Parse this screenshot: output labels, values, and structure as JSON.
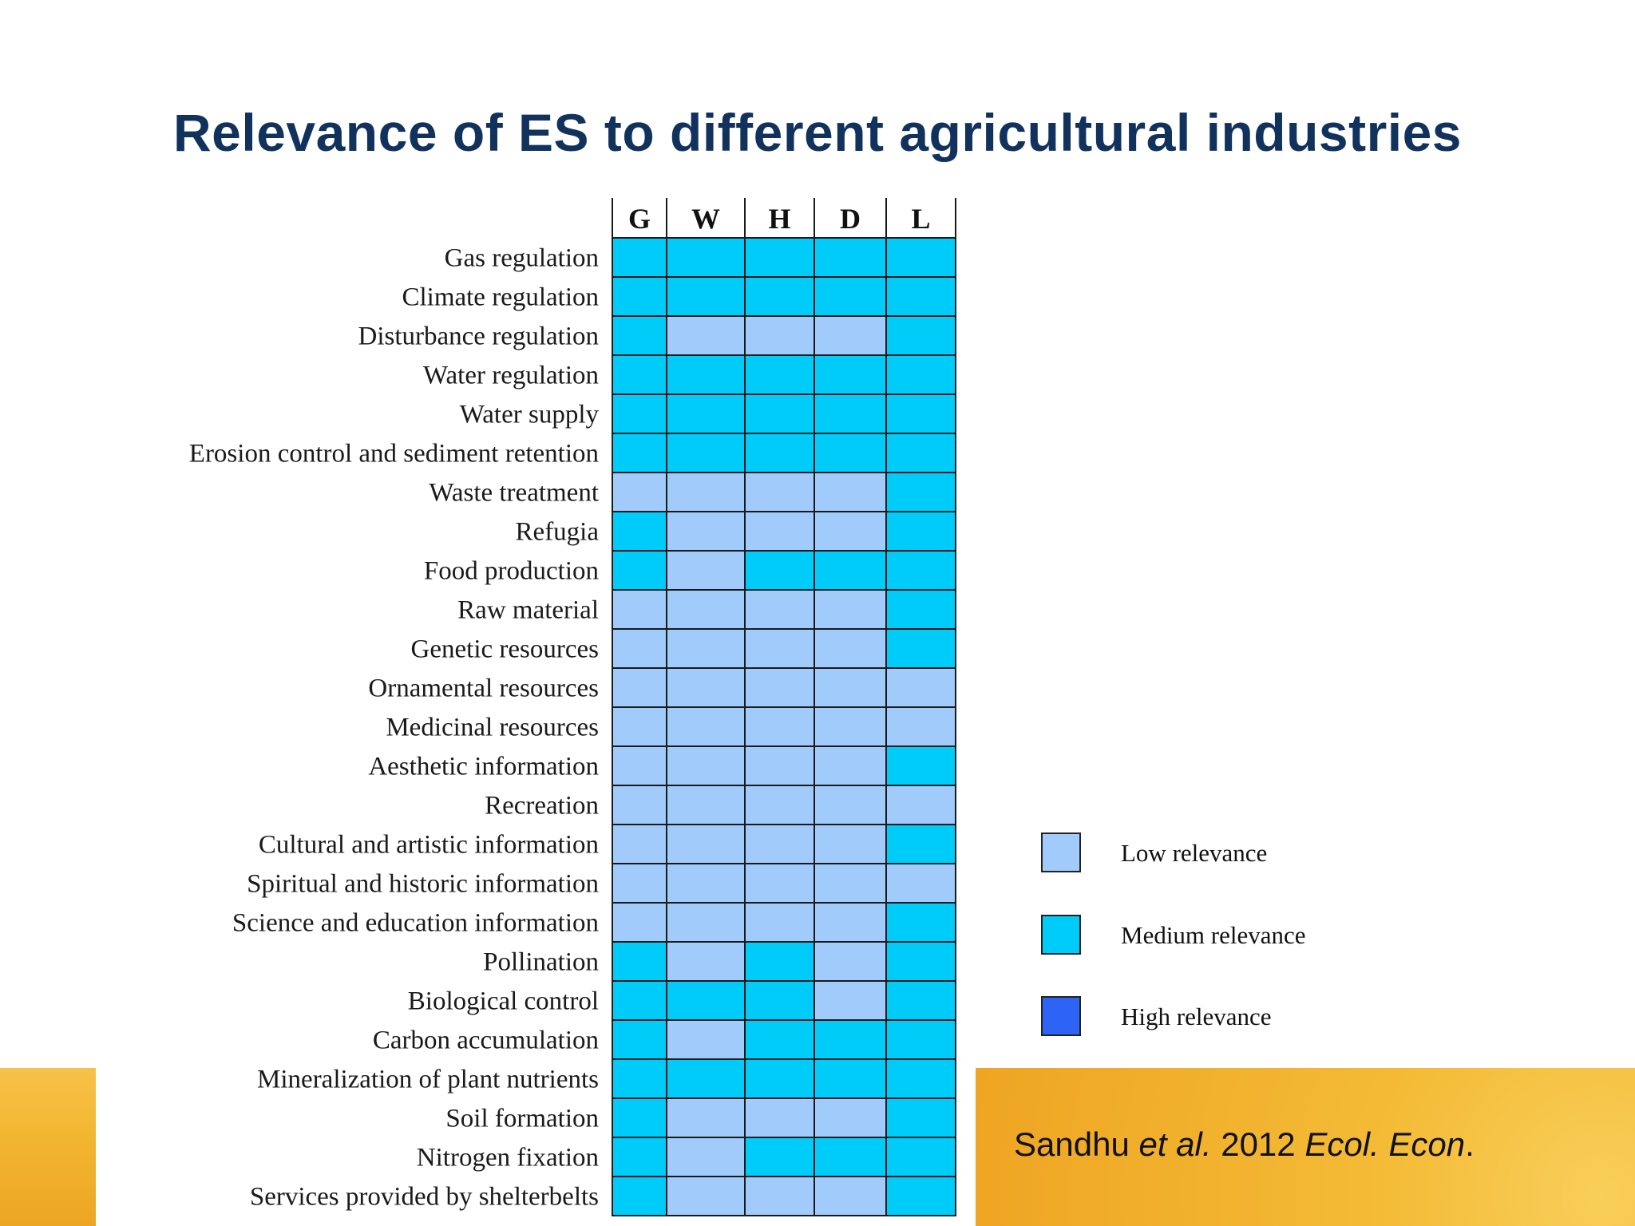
{
  "slide": {
    "title": "Relevance of ES to different agricultural industries",
    "citation": {
      "author": "Sandhu ",
      "etal": "et al.",
      "year": " 2012 ",
      "journal": "Ecol. Econ",
      "period": "."
    }
  },
  "legend": [
    {
      "label": "Low relevance",
      "color": "#a0cbfa"
    },
    {
      "label": "Medium relevance",
      "color": "#00ccfa"
    },
    {
      "label": "High relevance",
      "color": "#2e64f6"
    }
  ],
  "chart_data": {
    "type": "heatmap",
    "title": "Relevance of ES to different agricultural industries",
    "columns": [
      "G",
      "W",
      "H",
      "D",
      "L"
    ],
    "levels": [
      "Low relevance",
      "Medium relevance",
      "High relevance"
    ],
    "colors": {
      "Low relevance": "#a0cbfa",
      "Medium relevance": "#00ccfa",
      "High relevance": "#2e64f6"
    },
    "rows": [
      {
        "label": "Gas regulation",
        "values": [
          "Medium relevance",
          "Medium relevance",
          "Medium relevance",
          "Medium relevance",
          "Medium relevance"
        ]
      },
      {
        "label": "Climate regulation",
        "values": [
          "Medium relevance",
          "Medium relevance",
          "Medium relevance",
          "Medium relevance",
          "Medium relevance"
        ]
      },
      {
        "label": "Disturbance regulation",
        "values": [
          "Medium relevance",
          "Low relevance",
          "Low relevance",
          "Low relevance",
          "Medium relevance"
        ]
      },
      {
        "label": "Water regulation",
        "values": [
          "Medium relevance",
          "Medium relevance",
          "Medium relevance",
          "Medium relevance",
          "Medium relevance"
        ]
      },
      {
        "label": "Water supply",
        "values": [
          "Medium relevance",
          "Medium relevance",
          "Medium relevance",
          "Medium relevance",
          "Medium relevance"
        ]
      },
      {
        "label": "Erosion control and sediment retention",
        "values": [
          "Medium relevance",
          "Medium relevance",
          "Medium relevance",
          "Medium relevance",
          "Medium relevance"
        ]
      },
      {
        "label": "Waste treatment",
        "values": [
          "Low relevance",
          "Low relevance",
          "Low relevance",
          "Low relevance",
          "Medium relevance"
        ]
      },
      {
        "label": "Refugia",
        "values": [
          "Medium relevance",
          "Low relevance",
          "Low relevance",
          "Low relevance",
          "Medium relevance"
        ]
      },
      {
        "label": "Food production",
        "values": [
          "Medium relevance",
          "Low relevance",
          "Medium relevance",
          "Medium relevance",
          "Medium relevance"
        ]
      },
      {
        "label": "Raw material",
        "values": [
          "Low relevance",
          "Low relevance",
          "Low relevance",
          "Low relevance",
          "Medium relevance"
        ]
      },
      {
        "label": "Genetic resources",
        "values": [
          "Low relevance",
          "Low relevance",
          "Low relevance",
          "Low relevance",
          "Medium relevance"
        ]
      },
      {
        "label": "Ornamental resources",
        "values": [
          "Low relevance",
          "Low relevance",
          "Low relevance",
          "Low relevance",
          "Low relevance"
        ]
      },
      {
        "label": "Medicinal resources",
        "values": [
          "Low relevance",
          "Low relevance",
          "Low relevance",
          "Low relevance",
          "Low relevance"
        ]
      },
      {
        "label": "Aesthetic information",
        "values": [
          "Low relevance",
          "Low relevance",
          "Low relevance",
          "Low relevance",
          "Medium relevance"
        ]
      },
      {
        "label": "Recreation",
        "values": [
          "Low relevance",
          "Low relevance",
          "Low relevance",
          "Low relevance",
          "Low relevance"
        ]
      },
      {
        "label": "Cultural and artistic information",
        "values": [
          "Low relevance",
          "Low relevance",
          "Low relevance",
          "Low relevance",
          "Medium relevance"
        ]
      },
      {
        "label": "Spiritual and historic information",
        "values": [
          "Low relevance",
          "Low relevance",
          "Low relevance",
          "Low relevance",
          "Low relevance"
        ]
      },
      {
        "label": "Science and education information",
        "values": [
          "Low relevance",
          "Low relevance",
          "Low relevance",
          "Low relevance",
          "Medium relevance"
        ]
      },
      {
        "label": "Pollination",
        "values": [
          "Medium relevance",
          "Low relevance",
          "Medium relevance",
          "Low relevance",
          "Medium relevance"
        ]
      },
      {
        "label": "Biological control",
        "values": [
          "Medium relevance",
          "Medium relevance",
          "Medium relevance",
          "Low relevance",
          "Medium relevance"
        ]
      },
      {
        "label": "Carbon accumulation",
        "values": [
          "Medium relevance",
          "Low relevance",
          "Medium relevance",
          "Medium relevance",
          "Medium relevance"
        ]
      },
      {
        "label": "Mineralization of plant nutrients",
        "values": [
          "Medium relevance",
          "Medium relevance",
          "Medium relevance",
          "Medium relevance",
          "Medium relevance"
        ]
      },
      {
        "label": "Soil formation",
        "values": [
          "Medium relevance",
          "Low relevance",
          "Low relevance",
          "Low relevance",
          "Medium relevance"
        ]
      },
      {
        "label": "Nitrogen fixation",
        "values": [
          "Medium relevance",
          "Low relevance",
          "Medium relevance",
          "Medium relevance",
          "Medium relevance"
        ]
      },
      {
        "label": "Services provided by shelterbelts",
        "values": [
          "Medium relevance",
          "Low relevance",
          "Low relevance",
          "Low relevance",
          "Medium relevance"
        ]
      }
    ]
  }
}
